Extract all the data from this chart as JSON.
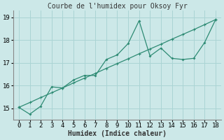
{
  "title": "Courbe de l'humidex pour Oksoy Fyr",
  "xlabel": "Humidex (Indice chaleur)",
  "background_color": "#cce8e8",
  "grid_color": "#aad4d4",
  "line_color": "#2e8b74",
  "x_line1": [
    0,
    1,
    2,
    3,
    4,
    5,
    6,
    7,
    8,
    9,
    10,
    11,
    12,
    13,
    14,
    15,
    16,
    17,
    18
  ],
  "y_line1": [
    15.05,
    14.75,
    15.1,
    15.95,
    15.9,
    16.25,
    16.45,
    16.45,
    17.15,
    17.35,
    17.85,
    18.85,
    17.3,
    17.65,
    17.2,
    17.15,
    17.2,
    17.9,
    18.9
  ],
  "x_line2": [
    0,
    1,
    2,
    3,
    4,
    5,
    6,
    7,
    8,
    9,
    10,
    11,
    12,
    13,
    14,
    15,
    16,
    17,
    18
  ],
  "y_line2": [
    15.05,
    15.26,
    15.48,
    15.69,
    15.9,
    16.12,
    16.33,
    16.54,
    16.76,
    16.97,
    17.18,
    17.4,
    17.61,
    17.82,
    18.04,
    18.25,
    18.46,
    18.68,
    18.9
  ],
  "ylim": [
    14.5,
    19.3
  ],
  "xlim": [
    -0.5,
    18.5
  ],
  "yticks": [
    15,
    16,
    17,
    18,
    19
  ],
  "xticks": [
    0,
    1,
    2,
    3,
    4,
    5,
    6,
    7,
    8,
    9,
    10,
    11,
    12,
    13,
    14,
    15,
    16,
    17,
    18
  ],
  "title_fontsize": 7,
  "xlabel_fontsize": 7,
  "tick_fontsize": 6.5
}
